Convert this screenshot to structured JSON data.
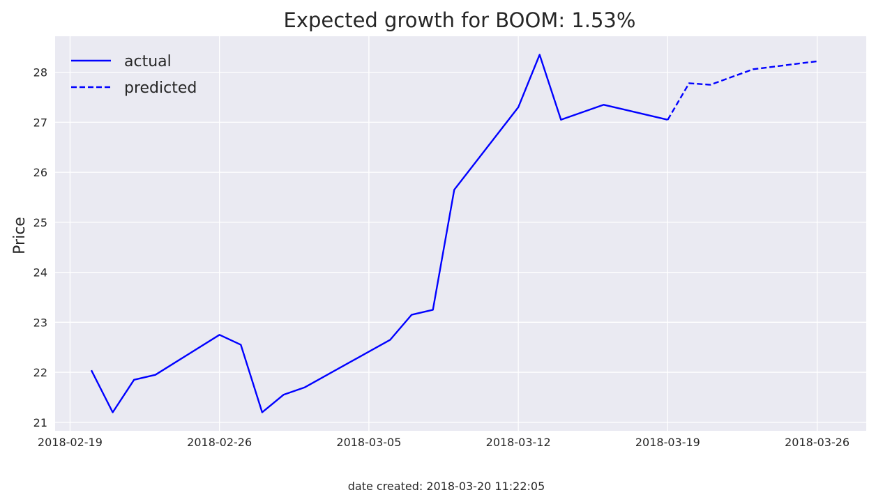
{
  "chart_data": {
    "type": "line",
    "title": "Expected growth for BOOM: 1.53%",
    "xlabel": "",
    "ylabel": "Price",
    "xlim": [
      "2018-02-19",
      "2018-03-26"
    ],
    "ylim": [
      21,
      28
    ],
    "x_ticks": [
      "2018-02-19",
      "2018-02-26",
      "2018-03-05",
      "2018-03-12",
      "2018-03-19",
      "2018-03-26"
    ],
    "y_ticks": [
      21,
      22,
      23,
      24,
      25,
      26,
      27,
      28
    ],
    "grid": true,
    "legend": "top-left",
    "series": [
      {
        "name": "actual",
        "style": "solid",
        "color": "#0000ff",
        "points": [
          {
            "x": "2018-02-20",
            "y": 22.04
          },
          {
            "x": "2018-02-21",
            "y": 21.2
          },
          {
            "x": "2018-02-22",
            "y": 21.85
          },
          {
            "x": "2018-02-23",
            "y": 21.95
          },
          {
            "x": "2018-02-26",
            "y": 22.75
          },
          {
            "x": "2018-02-27",
            "y": 22.55
          },
          {
            "x": "2018-02-28",
            "y": 21.2
          },
          {
            "x": "2018-03-01",
            "y": 21.55
          },
          {
            "x": "2018-03-02",
            "y": 21.7
          },
          {
            "x": "2018-03-06",
            "y": 22.65
          },
          {
            "x": "2018-03-07",
            "y": 23.15
          },
          {
            "x": "2018-03-08",
            "y": 23.25
          },
          {
            "x": "2018-03-09",
            "y": 25.65
          },
          {
            "x": "2018-03-12",
            "y": 27.3
          },
          {
            "x": "2018-03-13",
            "y": 28.35
          },
          {
            "x": "2018-03-14",
            "y": 27.05
          },
          {
            "x": "2018-03-16",
            "y": 27.35
          },
          {
            "x": "2018-03-19",
            "y": 27.05
          }
        ]
      },
      {
        "name": "predicted",
        "style": "dashed",
        "color": "#0000ff",
        "points": [
          {
            "x": "2018-03-19",
            "y": 27.05
          },
          {
            "x": "2018-03-20",
            "y": 27.78
          },
          {
            "x": "2018-03-21",
            "y": 27.75
          },
          {
            "x": "2018-03-23",
            "y": 28.06
          },
          {
            "x": "2018-03-26",
            "y": 28.22
          }
        ]
      }
    ],
    "footer": "date created: 2018-03-20 11:22:05"
  }
}
